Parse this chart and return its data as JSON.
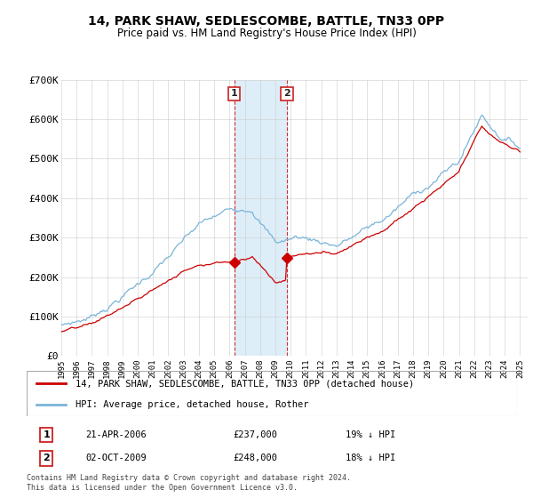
{
  "title": "14, PARK SHAW, SEDLESCOMBE, BATTLE, TN33 0PP",
  "subtitle": "Price paid vs. HM Land Registry's House Price Index (HPI)",
  "legend_line1": "14, PARK SHAW, SEDLESCOMBE, BATTLE, TN33 0PP (detached house)",
  "legend_line2": "HPI: Average price, detached house, Rother",
  "footnote": "Contains HM Land Registry data © Crown copyright and database right 2024.\nThis data is licensed under the Open Government Licence v3.0.",
  "transaction1_date": "21-APR-2006",
  "transaction1_price": "£237,000",
  "transaction1_hpi": "19% ↓ HPI",
  "transaction2_date": "02-OCT-2009",
  "transaction2_price": "£248,000",
  "transaction2_hpi": "18% ↓ HPI",
  "hpi_color": "#7ab4d8",
  "price_color": "#cc0000",
  "vline_color": "#cc0000",
  "span_color": "#ddeef8",
  "background_color": "#ffffff",
  "ylim": [
    0,
    700000
  ],
  "yticks": [
    0,
    100000,
    200000,
    300000,
    400000,
    500000,
    600000,
    700000
  ],
  "ytick_labels": [
    "£0",
    "£100K",
    "£200K",
    "£300K",
    "£400K",
    "£500K",
    "£600K",
    "£700K"
  ],
  "transaction1_year": 2006.3,
  "transaction2_year": 2009.75,
  "transaction1_price_val": 237000,
  "transaction2_price_val": 248000,
  "xstart": 1995,
  "xend": 2025
}
